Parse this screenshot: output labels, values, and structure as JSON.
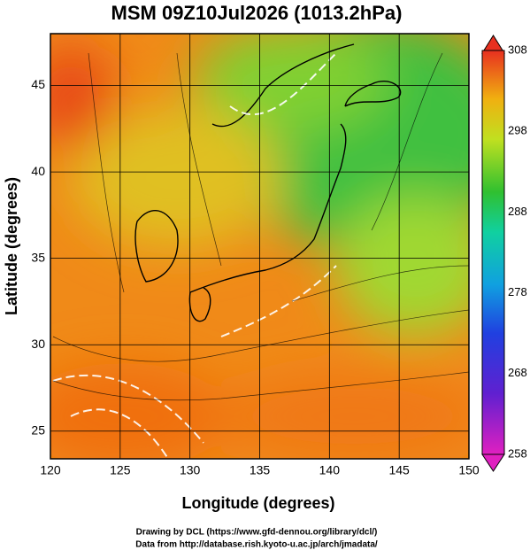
{
  "title": "MSM 09Z10Jul2026 (1013.2hPa)",
  "x_label": "Longitude (degrees)",
  "y_label": "Latitude  (degrees)",
  "xlim": [
    120,
    150
  ],
  "xticks": [
    120,
    125,
    130,
    135,
    140,
    145,
    150
  ],
  "ylim": [
    23.4,
    48
  ],
  "yticks": [
    25,
    30,
    35,
    40,
    45
  ],
  "colorbar": {
    "lim": [
      258,
      308
    ],
    "ticks": [
      258,
      268,
      278,
      288,
      298,
      308
    ]
  },
  "credits": [
    "Drawing by DCL (https://www.gfd-dennou.org/library/dcl/)",
    "Data from http://database.rish.kyoto-u.ac.jp/arch/jmadata/"
  ]
}
